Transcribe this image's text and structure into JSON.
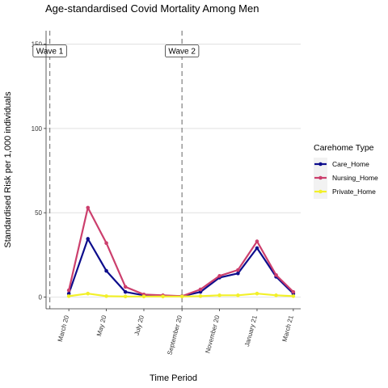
{
  "chart_data": {
    "type": "line",
    "title": "Age-standardised Covid Mortality Among Men",
    "xlabel": "Time Period",
    "ylabel": "Standardised Risk per 1,000 individuals",
    "ylim": [
      -7,
      158
    ],
    "yticks": [
      0,
      50,
      100,
      150
    ],
    "ytick_labels": [
      "0",
      "50",
      "100",
      "150"
    ],
    "x": [
      "2020-03-01",
      "2020-04-01",
      "2020-05-01",
      "2020-06-01",
      "2020-07-01",
      "2020-08-01",
      "2020-09-01",
      "2020-10-01",
      "2020-11-01",
      "2020-12-01",
      "2021-01-01",
      "2021-02-01",
      "2021-03-01"
    ],
    "xlim": [
      "2020-01-24",
      "2021-03-13"
    ],
    "xticks": [
      "2020-03-01",
      "2020-05-01",
      "2020-07-01",
      "2020-09-01",
      "2020-11-01",
      "2021-01-01",
      "2021-03-01"
    ],
    "xtick_labels": [
      "March 20",
      "May 20",
      "July 20",
      "September 20",
      "November 20",
      "January 21",
      "March 21"
    ],
    "grid": true,
    "legend_title": "Carehome Type",
    "legend_position": "right",
    "series": [
      {
        "name": "Care_Home",
        "color": "#0d0d8c",
        "values": [
          2,
          34.5,
          15.5,
          3,
          1,
          0.5,
          0.5,
          3,
          11.5,
          14,
          29,
          12,
          2
        ]
      },
      {
        "name": "Nursing_Home",
        "color": "#cc3f6d",
        "values": [
          4,
          53,
          32,
          6,
          1.5,
          1,
          0.5,
          4.5,
          12.5,
          16,
          33,
          13,
          3
        ]
      },
      {
        "name": "Private_Home",
        "color": "#f2f02a",
        "values": [
          0.5,
          2,
          0.5,
          0.3,
          0.3,
          0.3,
          0.3,
          0.5,
          1,
          1,
          2,
          1,
          0.5
        ]
      }
    ],
    "annotations": [
      {
        "label": "Wave 1",
        "date": "2020-01-30",
        "y": 146
      },
      {
        "label": "Wave 2",
        "date": "2020-09-01",
        "y": 146
      }
    ]
  }
}
